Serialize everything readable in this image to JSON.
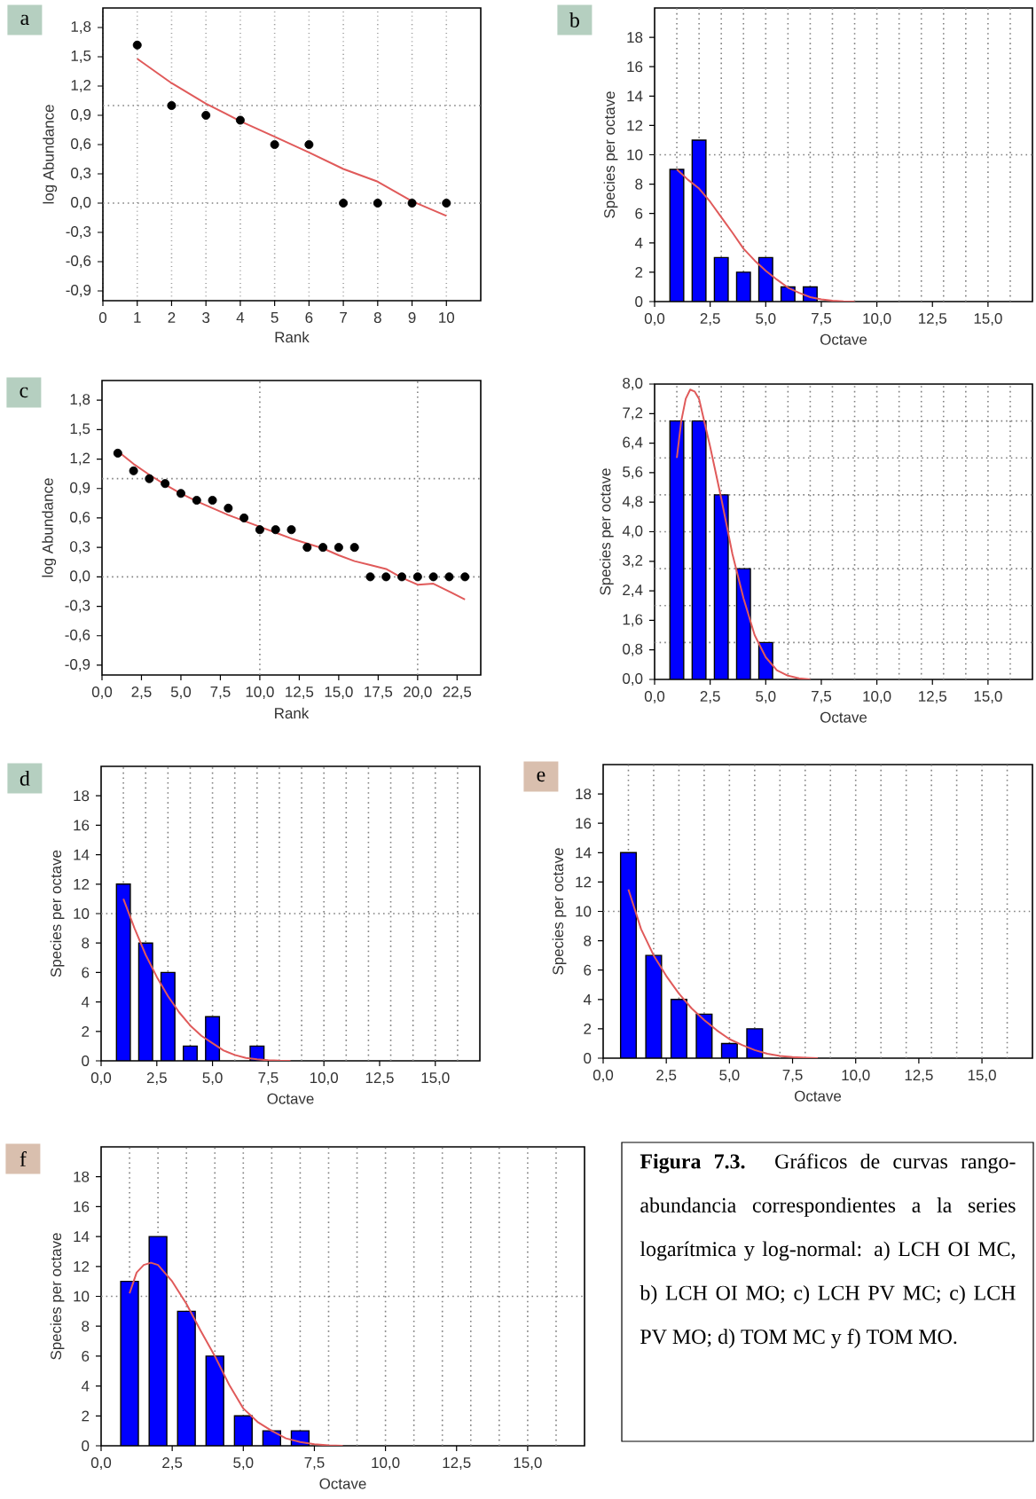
{
  "chart_data": [
    {
      "type": "scatter",
      "title": "a",
      "xlabel": "Rank",
      "ylabel": "log Abundance",
      "xlim": [
        0,
        11
      ],
      "ylim": [
        -1.0,
        2.0
      ],
      "grid": "x",
      "xticks": [
        0,
        1,
        2,
        3,
        4,
        5,
        6,
        7,
        8,
        9,
        10
      ],
      "yticks": [
        {
          "value": -0.9,
          "label": "-0,9"
        },
        {
          "value": -0.6,
          "label": "-0,6"
        },
        {
          "value": -0.3,
          "label": "-0,3"
        },
        {
          "value": 0,
          "label": "0,0"
        },
        {
          "value": 0.3,
          "label": "0,3"
        },
        {
          "value": 0.6,
          "label": "0,6"
        },
        {
          "value": 0.9,
          "label": "0,9"
        },
        {
          "value": 1.2,
          "label": "1,2"
        },
        {
          "value": 1.5,
          "label": "1,5"
        },
        {
          "value": 1.8,
          "label": "1,8"
        }
      ],
      "ref_lines": [
        {
          "axis": "y",
          "value": 0,
          "line_style": "dotted",
          "color": "#808080"
        },
        {
          "axis": "y",
          "value": 1,
          "line_style": "dotted",
          "color": "#808080"
        }
      ],
      "series": [
        {
          "type": "scatter",
          "color": "#000000",
          "x": [
            1,
            2,
            3,
            4,
            5,
            6,
            7,
            8,
            9,
            10
          ],
          "values": [
            1.62,
            1.0,
            0.9,
            0.85,
            0.6,
            0.6,
            0,
            0,
            0,
            0
          ]
        },
        {
          "type": "line",
          "color": "#e05a5a",
          "x": [
            1,
            2,
            3,
            4,
            5,
            6,
            7,
            8,
            9,
            10
          ],
          "values": [
            1.48,
            1.23,
            1.02,
            0.84,
            0.68,
            0.52,
            0.35,
            0.22,
            0.02,
            -0.13
          ]
        }
      ]
    },
    {
      "type": "bar",
      "title": "b",
      "xlabel": "Octave",
      "ylabel": "Species per octave",
      "xlim": [
        0,
        17
      ],
      "ylim": [
        0,
        20
      ],
      "xticks": [
        {
          "value": 0,
          "label": "0,0"
        },
        {
          "value": 2.5,
          "label": "2,5"
        },
        {
          "value": 5,
          "label": "5,0"
        },
        {
          "value": 7.5,
          "label": "7,5"
        },
        {
          "value": 10,
          "label": "10,0"
        },
        {
          "value": 12.5,
          "label": "12,5"
        },
        {
          "value": 15,
          "label": "15,0"
        }
      ],
      "yticks": [
        0,
        2,
        4,
        6,
        8,
        10,
        12,
        14,
        16,
        18
      ],
      "ref_lines": [
        {
          "axis": "y",
          "value": 10,
          "line_style": "dotted",
          "color": "#808080"
        },
        {
          "axis": "x",
          "value": 1,
          "line_style": "dotted",
          "color": "#808080"
        },
        {
          "axis": "x",
          "value": 2,
          "line_style": "dotted",
          "color": "#808080"
        },
        {
          "axis": "x",
          "value": 3,
          "line_style": "dotted",
          "color": "#808080"
        },
        {
          "axis": "x",
          "value": 4,
          "line_style": "dotted",
          "color": "#808080"
        },
        {
          "axis": "x",
          "value": 5,
          "line_style": "dotted",
          "color": "#808080"
        },
        {
          "axis": "x",
          "value": 6,
          "line_style": "dotted",
          "color": "#808080"
        },
        {
          "axis": "x",
          "value": 7,
          "line_style": "dotted",
          "color": "#808080"
        },
        {
          "axis": "x",
          "value": 8,
          "line_style": "dotted",
          "color": "#808080"
        },
        {
          "axis": "x",
          "value": 9,
          "line_style": "dotted",
          "color": "#808080"
        },
        {
          "axis": "x",
          "value": 10,
          "line_style": "dotted",
          "color": "#808080"
        },
        {
          "axis": "x",
          "value": 11,
          "line_style": "dotted",
          "color": "#808080"
        },
        {
          "axis": "x",
          "value": 12,
          "line_style": "dotted",
          "color": "#808080"
        },
        {
          "axis": "x",
          "value": 13,
          "line_style": "dotted",
          "color": "#808080"
        },
        {
          "axis": "x",
          "value": 14,
          "line_style": "dotted",
          "color": "#808080"
        },
        {
          "axis": "x",
          "value": 15,
          "line_style": "dotted",
          "color": "#808080"
        },
        {
          "axis": "x",
          "value": 16,
          "line_style": "dotted",
          "color": "#808080"
        }
      ],
      "series": [
        {
          "type": "bar",
          "color": "#0000ff",
          "x": [
            1,
            2,
            3,
            4,
            5,
            6,
            7
          ],
          "values": [
            9,
            11,
            3,
            2,
            3,
            1,
            1
          ]
        },
        {
          "type": "line",
          "color": "#e05a5a",
          "x": [
            1,
            1.5,
            2,
            2.5,
            3,
            3.5,
            4,
            4.5,
            5,
            5.5,
            6,
            6.5,
            7,
            7.5,
            8,
            8.5,
            9
          ],
          "values": [
            9.0,
            8.3,
            7.7,
            6.8,
            5.75,
            4.7,
            3.6,
            2.8,
            2.1,
            1.5,
            0.95,
            0.6,
            0.3,
            0.15,
            0.06,
            0.02,
            0
          ]
        }
      ]
    },
    {
      "type": "scatter",
      "title": "c",
      "xlabel": "Rank",
      "ylabel": "log Abundance",
      "xlim": [
        0,
        24
      ],
      "ylim": [
        -1.0,
        2.0
      ],
      "xticks": [
        {
          "value": 0,
          "label": "0,0"
        },
        {
          "value": 2.5,
          "label": "2,5"
        },
        {
          "value": 5,
          "label": "5,0"
        },
        {
          "value": 7.5,
          "label": "7,5"
        },
        {
          "value": 10,
          "label": "10,0"
        },
        {
          "value": 12.5,
          "label": "12,5"
        },
        {
          "value": 15,
          "label": "15,0"
        },
        {
          "value": 17.5,
          "label": "17,5"
        },
        {
          "value": 20,
          "label": "20,0"
        },
        {
          "value": 22.5,
          "label": "22,5"
        }
      ],
      "yticks": [
        {
          "value": -0.9,
          "label": "-0,9"
        },
        {
          "value": -0.6,
          "label": "-0,6"
        },
        {
          "value": -0.3,
          "label": "-0,3"
        },
        {
          "value": 0,
          "label": "0,0"
        },
        {
          "value": 0.3,
          "label": "0,3"
        },
        {
          "value": 0.6,
          "label": "0,6"
        },
        {
          "value": 0.9,
          "label": "0,9"
        },
        {
          "value": 1.2,
          "label": "1,2"
        },
        {
          "value": 1.5,
          "label": "1,5"
        },
        {
          "value": 1.8,
          "label": "1,8"
        }
      ],
      "ref_lines": [
        {
          "axis": "y",
          "value": 0,
          "line_style": "dotted",
          "color": "#808080"
        },
        {
          "axis": "y",
          "value": 1,
          "line_style": "dotted",
          "color": "#808080"
        },
        {
          "axis": "x",
          "value": 10,
          "line_style": "dotted",
          "color": "#808080"
        },
        {
          "axis": "x",
          "value": 20,
          "line_style": "dotted",
          "color": "#808080"
        }
      ],
      "series": [
        {
          "type": "scatter",
          "color": "#000000",
          "x": [
            1,
            2,
            3,
            4,
            5,
            6,
            7,
            8,
            9,
            10,
            11,
            12,
            13,
            14,
            15,
            16,
            17,
            18,
            19,
            20,
            21,
            22,
            23
          ],
          "values": [
            1.26,
            1.08,
            1.0,
            0.95,
            0.85,
            0.78,
            0.78,
            0.7,
            0.6,
            0.48,
            0.48,
            0.48,
            0.3,
            0.3,
            0.3,
            0.3,
            0,
            0,
            0,
            0,
            0,
            0,
            0
          ]
        },
        {
          "type": "line",
          "color": "#e05a5a",
          "x": [
            1,
            2,
            3,
            4,
            5,
            6,
            7,
            8,
            9,
            10,
            11,
            12,
            13,
            14,
            15,
            16,
            17,
            18,
            19,
            20,
            21,
            22,
            23
          ],
          "values": [
            1.28,
            1.15,
            1.04,
            0.94,
            0.85,
            0.77,
            0.7,
            0.63,
            0.57,
            0.51,
            0.45,
            0.39,
            0.34,
            0.29,
            0.22,
            0.16,
            0.12,
            0.08,
            -0.01,
            -0.08,
            -0.07,
            -0.15,
            -0.23
          ]
        }
      ]
    },
    {
      "type": "bar",
      "xlabel": "Octave",
      "ylabel": "Species per octave",
      "xlim": [
        0,
        17
      ],
      "ylim": [
        0,
        8
      ],
      "xticks": [
        {
          "value": 0,
          "label": "0,0"
        },
        {
          "value": 2.5,
          "label": "2,5"
        },
        {
          "value": 5,
          "label": "5,0"
        },
        {
          "value": 7.5,
          "label": "7,5"
        },
        {
          "value": 10,
          "label": "10,0"
        },
        {
          "value": 12.5,
          "label": "12,5"
        },
        {
          "value": 15,
          "label": "15,0"
        }
      ],
      "yticks": [
        {
          "value": 0,
          "label": "0,0"
        },
        {
          "value": 0.8,
          "label": "0,8"
        },
        {
          "value": 1.6,
          "label": "1,6"
        },
        {
          "value": 2.4,
          "label": "2,4"
        },
        {
          "value": 3.2,
          "label": "3,2"
        },
        {
          "value": 4.0,
          "label": "4,0"
        },
        {
          "value": 4.8,
          "label": "4,8"
        },
        {
          "value": 5.6,
          "label": "5,6"
        },
        {
          "value": 6.4,
          "label": "6,4"
        },
        {
          "value": 7.2,
          "label": "7,2"
        },
        {
          "value": 8.0,
          "label": "8,0"
        }
      ],
      "ref_lines": [
        {
          "axis": "y",
          "value": 1,
          "line_style": "dotted",
          "color": "#808080"
        },
        {
          "axis": "y",
          "value": 2,
          "line_style": "dotted",
          "color": "#808080"
        },
        {
          "axis": "y",
          "value": 3,
          "line_style": "dotted",
          "color": "#808080"
        },
        {
          "axis": "y",
          "value": 4,
          "line_style": "dotted",
          "color": "#808080"
        },
        {
          "axis": "y",
          "value": 5,
          "line_style": "dotted",
          "color": "#808080"
        },
        {
          "axis": "y",
          "value": 6,
          "line_style": "dotted",
          "color": "#808080"
        },
        {
          "axis": "y",
          "value": 7,
          "line_style": "dotted",
          "color": "#808080"
        },
        {
          "axis": "x",
          "value": 1,
          "line_style": "dotted",
          "color": "#808080"
        },
        {
          "axis": "x",
          "value": 2,
          "line_style": "dotted",
          "color": "#808080"
        },
        {
          "axis": "x",
          "value": 3,
          "line_style": "dotted",
          "color": "#808080"
        },
        {
          "axis": "x",
          "value": 4,
          "line_style": "dotted",
          "color": "#808080"
        },
        {
          "axis": "x",
          "value": 5,
          "line_style": "dotted",
          "color": "#808080"
        },
        {
          "axis": "x",
          "value": 6,
          "line_style": "dotted",
          "color": "#808080"
        },
        {
          "axis": "x",
          "value": 7,
          "line_style": "dotted",
          "color": "#808080"
        },
        {
          "axis": "x",
          "value": 8,
          "line_style": "dotted",
          "color": "#808080"
        },
        {
          "axis": "x",
          "value": 9,
          "line_style": "dotted",
          "color": "#808080"
        },
        {
          "axis": "x",
          "value": 10,
          "line_style": "dotted",
          "color": "#808080"
        },
        {
          "axis": "x",
          "value": 11,
          "line_style": "dotted",
          "color": "#808080"
        },
        {
          "axis": "x",
          "value": 12,
          "line_style": "dotted",
          "color": "#808080"
        },
        {
          "axis": "x",
          "value": 13,
          "line_style": "dotted",
          "color": "#808080"
        },
        {
          "axis": "x",
          "value": 14,
          "line_style": "dotted",
          "color": "#808080"
        },
        {
          "axis": "x",
          "value": 15,
          "line_style": "dotted",
          "color": "#808080"
        },
        {
          "axis": "x",
          "value": 16,
          "line_style": "dotted",
          "color": "#808080"
        }
      ],
      "series": [
        {
          "type": "bar",
          "color": "#0000ff",
          "x": [
            1,
            2,
            3,
            4,
            5
          ],
          "values": [
            7,
            7,
            5,
            3,
            1
          ]
        },
        {
          "type": "line",
          "color": "#e05a5a",
          "x": [
            1.0,
            1.2,
            1.4,
            1.6,
            1.8,
            2.0,
            2.5,
            3.0,
            3.5,
            4.0,
            4.5,
            5.0,
            5.5,
            6.0,
            6.5,
            7.0
          ],
          "values": [
            6.0,
            7.0,
            7.6,
            7.85,
            7.8,
            7.6,
            6.3,
            4.9,
            3.4,
            2.2,
            1.2,
            0.6,
            0.25,
            0.1,
            0.03,
            0.0
          ]
        }
      ]
    },
    {
      "type": "bar",
      "title": "d",
      "xlabel": "Octave",
      "ylabel": "Species per octave",
      "xlim": [
        0,
        17
      ],
      "ylim": [
        0,
        20
      ],
      "xticks": [
        {
          "value": 0,
          "label": "0,0"
        },
        {
          "value": 2.5,
          "label": "2,5"
        },
        {
          "value": 5,
          "label": "5,0"
        },
        {
          "value": 7.5,
          "label": "7,5"
        },
        {
          "value": 10,
          "label": "10,0"
        },
        {
          "value": 12.5,
          "label": "12,5"
        },
        {
          "value": 15,
          "label": "15,0"
        }
      ],
      "yticks": [
        0,
        2,
        4,
        6,
        8,
        10,
        12,
        14,
        16,
        18
      ],
      "ref_lines": [
        {
          "axis": "y",
          "value": 10,
          "line_style": "dotted",
          "color": "#808080"
        },
        {
          "axis": "x",
          "value": 1,
          "line_style": "dotted",
          "color": "#808080"
        },
        {
          "axis": "x",
          "value": 2,
          "line_style": "dotted",
          "color": "#808080"
        },
        {
          "axis": "x",
          "value": 3,
          "line_style": "dotted",
          "color": "#808080"
        },
        {
          "axis": "x",
          "value": 4,
          "line_style": "dotted",
          "color": "#808080"
        },
        {
          "axis": "x",
          "value": 5,
          "line_style": "dotted",
          "color": "#808080"
        },
        {
          "axis": "x",
          "value": 6,
          "line_style": "dotted",
          "color": "#808080"
        },
        {
          "axis": "x",
          "value": 7,
          "line_style": "dotted",
          "color": "#808080"
        },
        {
          "axis": "x",
          "value": 8,
          "line_style": "dotted",
          "color": "#808080"
        },
        {
          "axis": "x",
          "value": 9,
          "line_style": "dotted",
          "color": "#808080"
        },
        {
          "axis": "x",
          "value": 10,
          "line_style": "dotted",
          "color": "#808080"
        },
        {
          "axis": "x",
          "value": 11,
          "line_style": "dotted",
          "color": "#808080"
        },
        {
          "axis": "x",
          "value": 12,
          "line_style": "dotted",
          "color": "#808080"
        },
        {
          "axis": "x",
          "value": 13,
          "line_style": "dotted",
          "color": "#808080"
        },
        {
          "axis": "x",
          "value": 14,
          "line_style": "dotted",
          "color": "#808080"
        },
        {
          "axis": "x",
          "value": 15,
          "line_style": "dotted",
          "color": "#808080"
        },
        {
          "axis": "x",
          "value": 16,
          "line_style": "dotted",
          "color": "#808080"
        }
      ],
      "series": [
        {
          "type": "bar",
          "color": "#0000ff",
          "x": [
            1,
            2,
            3,
            4,
            5,
            7
          ],
          "values": [
            12,
            8,
            6,
            1,
            3,
            1
          ]
        },
        {
          "type": "line",
          "color": "#e05a5a",
          "x": [
            1,
            1.5,
            2,
            2.5,
            3,
            3.5,
            4,
            4.5,
            5,
            5.5,
            6,
            6.5,
            7,
            7.5,
            8,
            8.5
          ],
          "values": [
            11.0,
            9.0,
            7.2,
            5.7,
            4.4,
            3.3,
            2.4,
            1.7,
            1.2,
            0.7,
            0.4,
            0.2,
            0.1,
            0.04,
            0.01,
            0
          ]
        }
      ]
    },
    {
      "type": "bar",
      "title": "e",
      "xlabel": "Octave",
      "ylabel": "Species per octave",
      "xlim": [
        0,
        17
      ],
      "ylim": [
        0,
        20
      ],
      "xticks": [
        {
          "value": 0,
          "label": "0,0"
        },
        {
          "value": 2.5,
          "label": "2,5"
        },
        {
          "value": 5,
          "label": "5,0"
        },
        {
          "value": 7.5,
          "label": "7,5"
        },
        {
          "value": 10,
          "label": "10,0"
        },
        {
          "value": 12.5,
          "label": "12,5"
        },
        {
          "value": 15,
          "label": "15,0"
        }
      ],
      "yticks": [
        0,
        2,
        4,
        6,
        8,
        10,
        12,
        14,
        16,
        18
      ],
      "ref_lines": [
        {
          "axis": "y",
          "value": 10,
          "line_style": "dotted",
          "color": "#808080"
        },
        {
          "axis": "x",
          "value": 1,
          "line_style": "dotted",
          "color": "#808080"
        },
        {
          "axis": "x",
          "value": 2,
          "line_style": "dotted",
          "color": "#808080"
        },
        {
          "axis": "x",
          "value": 3,
          "line_style": "dotted",
          "color": "#808080"
        },
        {
          "axis": "x",
          "value": 4,
          "line_style": "dotted",
          "color": "#808080"
        },
        {
          "axis": "x",
          "value": 5,
          "line_style": "dotted",
          "color": "#808080"
        },
        {
          "axis": "x",
          "value": 6,
          "line_style": "dotted",
          "color": "#808080"
        },
        {
          "axis": "x",
          "value": 7,
          "line_style": "dotted",
          "color": "#808080"
        },
        {
          "axis": "x",
          "value": 8,
          "line_style": "dotted",
          "color": "#808080"
        },
        {
          "axis": "x",
          "value": 9,
          "line_style": "dotted",
          "color": "#808080"
        },
        {
          "axis": "x",
          "value": 10,
          "line_style": "dotted",
          "color": "#808080"
        },
        {
          "axis": "x",
          "value": 11,
          "line_style": "dotted",
          "color": "#808080"
        },
        {
          "axis": "x",
          "value": 12,
          "line_style": "dotted",
          "color": "#808080"
        },
        {
          "axis": "x",
          "value": 13,
          "line_style": "dotted",
          "color": "#808080"
        },
        {
          "axis": "x",
          "value": 14,
          "line_style": "dotted",
          "color": "#808080"
        },
        {
          "axis": "x",
          "value": 15,
          "line_style": "dotted",
          "color": "#808080"
        },
        {
          "axis": "x",
          "value": 16,
          "line_style": "dotted",
          "color": "#808080"
        }
      ],
      "series": [
        {
          "type": "bar",
          "color": "#0000ff",
          "x": [
            1,
            2,
            3,
            4,
            5,
            6
          ],
          "values": [
            14,
            7,
            4,
            3,
            1,
            2
          ]
        },
        {
          "type": "line",
          "color": "#e05a5a",
          "x": [
            1,
            1.5,
            2,
            2.5,
            3,
            3.5,
            4,
            4.5,
            5,
            5.5,
            6,
            6.5,
            7,
            7.5,
            8,
            8.5
          ],
          "values": [
            11.5,
            8.8,
            7.0,
            5.6,
            4.4,
            3.4,
            2.6,
            1.9,
            1.3,
            0.9,
            0.55,
            0.3,
            0.15,
            0.07,
            0.03,
            0
          ]
        }
      ]
    },
    {
      "type": "bar",
      "title": "f",
      "xlabel": "Octave",
      "ylabel": "Species per octave",
      "xlim": [
        0,
        17
      ],
      "ylim": [
        0,
        20
      ],
      "xticks": [
        {
          "value": 0,
          "label": "0,0"
        },
        {
          "value": 2.5,
          "label": "2,5"
        },
        {
          "value": 5,
          "label": "5,0"
        },
        {
          "value": 7.5,
          "label": "7,5"
        },
        {
          "value": 10,
          "label": "10,0"
        },
        {
          "value": 12.5,
          "label": "12,5"
        },
        {
          "value": 15,
          "label": "15,0"
        }
      ],
      "yticks": [
        0,
        2,
        4,
        6,
        8,
        10,
        12,
        14,
        16,
        18
      ],
      "ref_lines": [
        {
          "axis": "y",
          "value": 10,
          "line_style": "dotted",
          "color": "#808080"
        },
        {
          "axis": "x",
          "value": 1,
          "line_style": "dotted",
          "color": "#808080"
        },
        {
          "axis": "x",
          "value": 2,
          "line_style": "dotted",
          "color": "#808080"
        },
        {
          "axis": "x",
          "value": 3,
          "line_style": "dotted",
          "color": "#808080"
        },
        {
          "axis": "x",
          "value": 4,
          "line_style": "dotted",
          "color": "#808080"
        },
        {
          "axis": "x",
          "value": 5,
          "line_style": "dotted",
          "color": "#808080"
        },
        {
          "axis": "x",
          "value": 6,
          "line_style": "dotted",
          "color": "#808080"
        },
        {
          "axis": "x",
          "value": 7,
          "line_style": "dotted",
          "color": "#808080"
        },
        {
          "axis": "x",
          "value": 8,
          "line_style": "dotted",
          "color": "#808080"
        },
        {
          "axis": "x",
          "value": 9,
          "line_style": "dotted",
          "color": "#808080"
        },
        {
          "axis": "x",
          "value": 10,
          "line_style": "dotted",
          "color": "#808080"
        },
        {
          "axis": "x",
          "value": 11,
          "line_style": "dotted",
          "color": "#808080"
        },
        {
          "axis": "x",
          "value": 12,
          "line_style": "dotted",
          "color": "#808080"
        },
        {
          "axis": "x",
          "value": 13,
          "line_style": "dotted",
          "color": "#808080"
        },
        {
          "axis": "x",
          "value": 14,
          "line_style": "dotted",
          "color": "#808080"
        },
        {
          "axis": "x",
          "value": 15,
          "line_style": "dotted",
          "color": "#808080"
        },
        {
          "axis": "x",
          "value": 16,
          "line_style": "dotted",
          "color": "#808080"
        }
      ],
      "series": [
        {
          "type": "bar",
          "color": "#0000ff",
          "x": [
            1,
            2,
            3,
            4,
            5,
            6,
            7
          ],
          "values": [
            11,
            14,
            9,
            6,
            2,
            1,
            1
          ]
        },
        {
          "type": "line",
          "color": "#e05a5a",
          "x": [
            1,
            1.25,
            1.5,
            1.75,
            2,
            2.5,
            3,
            3.5,
            4,
            4.5,
            5,
            5.5,
            6,
            6.5,
            7,
            7.5,
            8,
            8.5
          ],
          "values": [
            10.2,
            11.6,
            12.1,
            12.25,
            12.1,
            11.0,
            9.5,
            7.7,
            6.0,
            4.1,
            2.5,
            1.6,
            1.0,
            0.5,
            0.25,
            0.1,
            0.03,
            0
          ]
        }
      ]
    },
    {
      "type": "other",
      "annotations": [
        "**Figura 7.3.** Gráficos de curvas rango- abundancia correspondientes a la series logarítmica y log-normal: a) LCH OI MC, b) LCH OI MO; c) LCH PV MC; c) LCH PV MO; d) TOM MC y f) TOM MO."
      ]
    }
  ]
}
